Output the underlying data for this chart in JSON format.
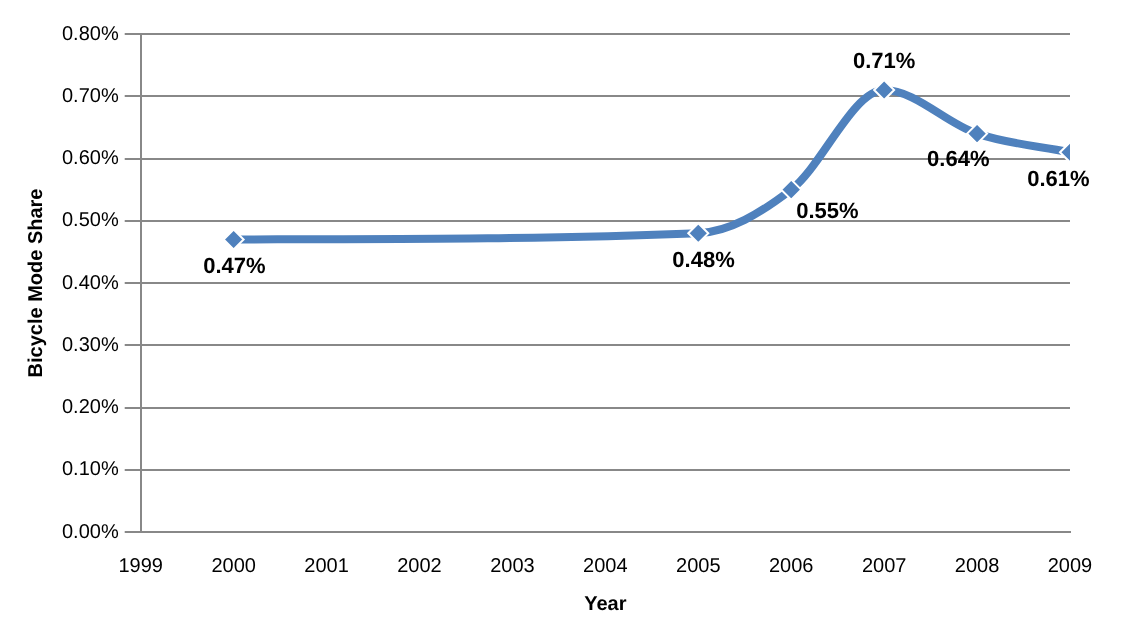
{
  "chart_data": {
    "type": "line",
    "xlabel": "Year",
    "ylabel": "Bicycle Mode Share",
    "x": [
      2000,
      2005,
      2006,
      2007,
      2008,
      2009
    ],
    "series": [
      {
        "color": "#4f81bd",
        "values": [
          0.47,
          0.48,
          0.55,
          0.71,
          0.64,
          0.61
        ],
        "value_labels": [
          "0.47%",
          "0.48%",
          "0.55%",
          "0.71%",
          "0.64%",
          "0.61%"
        ]
      }
    ],
    "xlim": [
      1999,
      2009
    ],
    "xticks": [
      1999,
      2000,
      2001,
      2002,
      2003,
      2004,
      2005,
      2006,
      2007,
      2008,
      2009
    ],
    "ylim": [
      0,
      0.8
    ],
    "yticks": [
      {
        "value": 0,
        "label": "0.00%"
      },
      {
        "value": 0.1,
        "label": "0.10%"
      },
      {
        "value": 0.2,
        "label": "0.20%"
      },
      {
        "value": 0.3,
        "label": "0.30%"
      },
      {
        "value": 0.4,
        "label": "0.40%"
      },
      {
        "value": 0.5,
        "label": "0.50%"
      },
      {
        "value": 0.6,
        "label": "0.60%"
      },
      {
        "value": 0.7,
        "label": "0.70%"
      },
      {
        "value": 0.8,
        "label": "0.80%"
      }
    ],
    "grid": "y",
    "legend": false,
    "marker": "diamond",
    "line_style": "solid"
  }
}
